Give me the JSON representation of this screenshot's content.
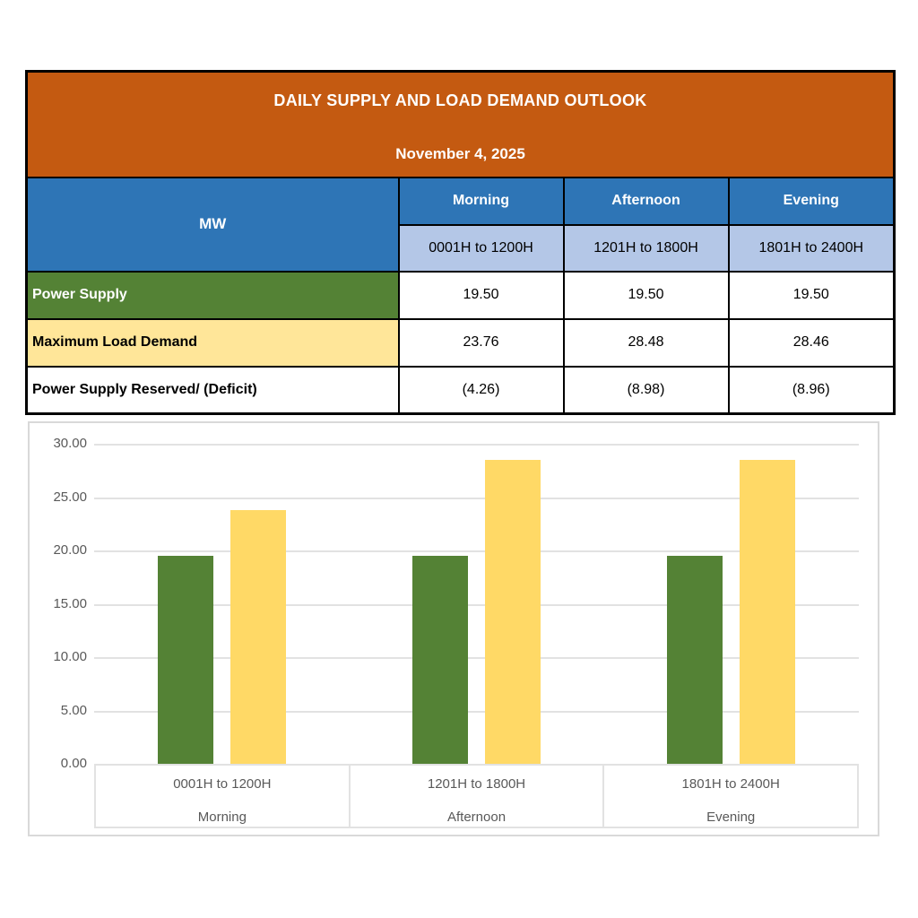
{
  "table": {
    "title": "DAILY SUPPLY AND LOAD DEMAND OUTLOOK",
    "date": "November 4, 2025",
    "unit_label": "MW",
    "periods": [
      {
        "name": "Morning",
        "range": "0001H to 1200H"
      },
      {
        "name": "Afternoon",
        "range": "1201H to 1800H"
      },
      {
        "name": "Evening",
        "range": "1801H to 2400H"
      }
    ],
    "rows": [
      {
        "label": "Power Supply",
        "values": [
          "19.50",
          "19.50",
          "19.50"
        ],
        "label_bg": "#548235",
        "label_color": "#FFFFFF"
      },
      {
        "label": "Maximum Load Demand",
        "values": [
          "23.76",
          "28.48",
          "28.46"
        ],
        "label_bg": "#FFE699",
        "label_color": "#000000"
      },
      {
        "label": "Power Supply Reserved/ (Deficit)",
        "values": [
          "(4.26)",
          "(8.98)",
          "(8.96)"
        ],
        "label_bg": "#FFFFFF",
        "label_color": "#000000"
      }
    ],
    "colors": {
      "header_bg": "#C45A11",
      "period_bg": "#2E75B6",
      "range_bg": "#B4C7E7",
      "border": "#000000"
    }
  },
  "chart_data": {
    "type": "bar",
    "categories": [
      "0001H to 1200H",
      "1201H to 1800H",
      "1801H to 2400H"
    ],
    "category_sublabels": [
      "Morning",
      "Afternoon",
      "Evening"
    ],
    "series": [
      {
        "name": "Power Supply",
        "values": [
          19.5,
          19.5,
          19.5
        ],
        "color": "#548235"
      },
      {
        "name": "Maximum Load Demand",
        "values": [
          23.76,
          28.48,
          28.46
        ],
        "color": "#FFD966"
      }
    ],
    "ylim": [
      0,
      30
    ],
    "ytick_step": 5,
    "ytick_labels": [
      "30.00",
      "25.00",
      "20.00",
      "15.00",
      "10.00",
      "5.00",
      "0.00"
    ],
    "grid": true,
    "legend": "none",
    "axis_text_color": "#595959",
    "gridline_color": "#E2E2E2"
  }
}
